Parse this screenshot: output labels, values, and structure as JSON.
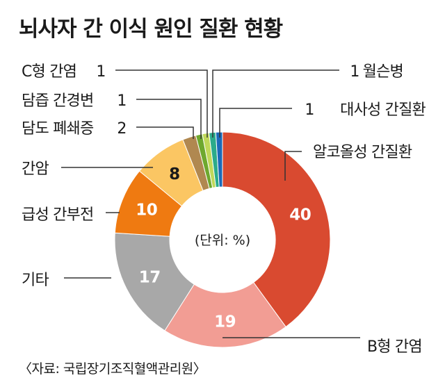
{
  "title": "뇌사자 간 이식 원인 질환 현황",
  "source": "〈자료: 국립장기조직혈액관리원〉",
  "chart_data": {
    "type": "pie",
    "donut": true,
    "unit_label": "(단위: %)",
    "slices": [
      {
        "label": "알코올성 간질환",
        "value": 40,
        "color": "#d94a30",
        "value_color": "#ffffff"
      },
      {
        "label": "B형 간염",
        "value": 19,
        "color": "#f29d94",
        "value_color": "#ffffff"
      },
      {
        "label": "기타",
        "value": 17,
        "color": "#a8a8a8",
        "value_color": "#ffffff"
      },
      {
        "label": "급성 간부전",
        "value": 10,
        "color": "#ef7a11",
        "value_color": "#ffffff"
      },
      {
        "label": "간암",
        "value": 8,
        "color": "#fbc663",
        "value_color": "#1a1a1a"
      },
      {
        "label": "담도 폐쇄증",
        "value": 2,
        "color": "#b08850",
        "value_color": "#1a1a1a"
      },
      {
        "label": "담즙 간경변",
        "value": 1,
        "color": "#6ea82e",
        "value_color": "#1a1a1a"
      },
      {
        "label": "C형 간염",
        "value": 1,
        "color": "#c0d85a",
        "value_color": "#1a1a1a"
      },
      {
        "label": "월슨병",
        "value": 1,
        "color": "#2bab8a",
        "value_color": "#1a1a1a"
      },
      {
        "label": "대사성 간질환",
        "value": 1,
        "color": "#1a6ab8",
        "value_color": "#1a1a1a"
      }
    ]
  }
}
